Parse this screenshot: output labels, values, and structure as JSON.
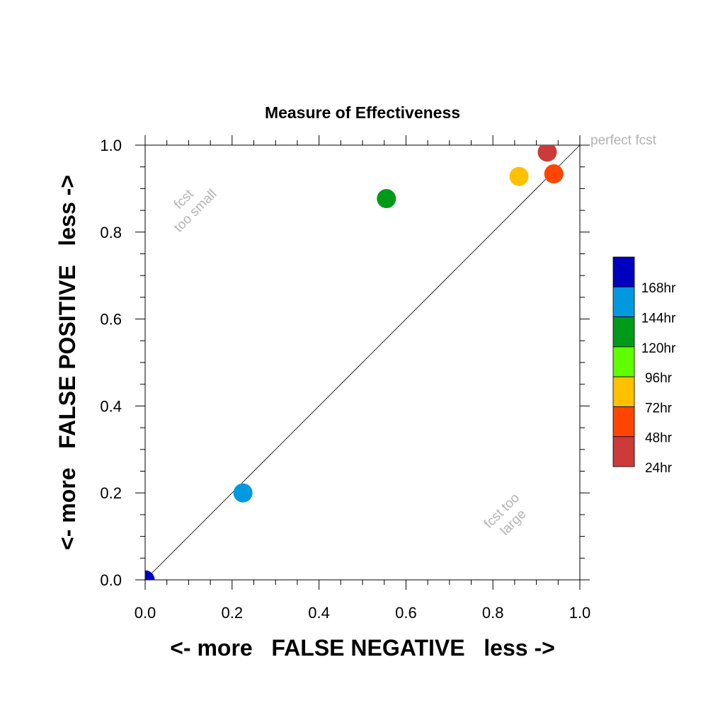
{
  "chart_data": {
    "type": "scatter",
    "title": "Measure of Effectiveness",
    "xlabel": "<- more   FALSE NEGATIVE   less ->",
    "ylabel": "<- more   FALSE POSITIVE   less ->",
    "xlim": [
      0,
      1
    ],
    "ylim": [
      0,
      1
    ],
    "xticks": [
      "0.0",
      "0.2",
      "0.4",
      "0.6",
      "0.8",
      "1.0"
    ],
    "yticks": [
      "0.0",
      "0.2",
      "0.4",
      "0.6",
      "0.8",
      "1.0"
    ],
    "grid": false,
    "diagonal_line": true,
    "annotations": {
      "perfect": "perfect fcst",
      "too_small_1": "fcst",
      "too_small_2": "too small",
      "too_large_1": "fcst too",
      "too_large_2": "large"
    },
    "legend": {
      "placement": "right",
      "entries": [
        {
          "label": "168hr",
          "color": "#0000c0"
        },
        {
          "label": "144hr",
          "color": "#0099e0"
        },
        {
          "label": "120hr",
          "color": "#009a1a"
        },
        {
          "label": "96hr",
          "color": "#60ff00"
        },
        {
          "label": "72hr",
          "color": "#ffc000"
        },
        {
          "label": "48hr",
          "color": "#ff4500"
        },
        {
          "label": "24hr",
          "color": "#cc3a3a"
        }
      ]
    },
    "series": [
      {
        "name": "168hr",
        "x": 0.0,
        "y": 0.0,
        "color": "#0000c0"
      },
      {
        "name": "144hr",
        "x": 0.225,
        "y": 0.2,
        "color": "#0099e0"
      },
      {
        "name": "120hr",
        "x": 0.555,
        "y": 0.877,
        "color": "#009a1a"
      },
      {
        "name": "72hr",
        "x": 0.86,
        "y": 0.928,
        "color": "#ffc000"
      },
      {
        "name": "48hr",
        "x": 0.94,
        "y": 0.934,
        "color": "#ff4500"
      },
      {
        "name": "24hr",
        "x": 0.925,
        "y": 0.984,
        "color": "#cc3a3a"
      }
    ]
  }
}
